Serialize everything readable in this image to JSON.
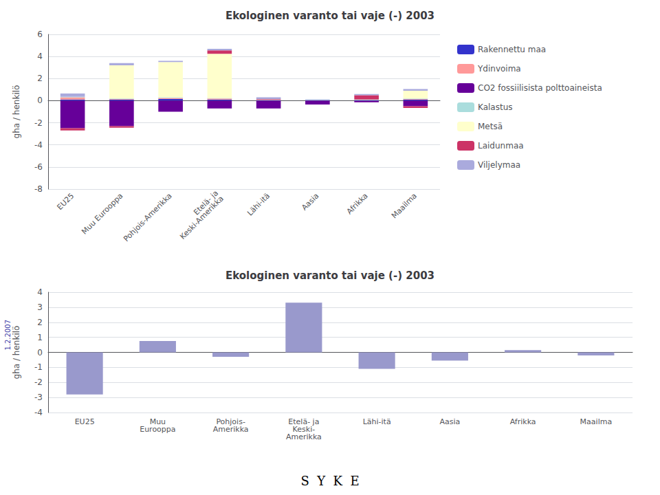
{
  "chart_data": [
    {
      "type": "bar",
      "stacked": true,
      "title": "Ekologinen varanto tai vaje (-) 2003",
      "ylabel": "gha / henkilö",
      "categories": [
        "EU25",
        "Muu Eurooppa",
        "Pohjois-Amerikka",
        "Etelä- ja\nKeski-Amerikka",
        "Lähi-itä",
        "Aasia",
        "Afrikka",
        "Maailma"
      ],
      "series": [
        {
          "name": "Rakennettu maa",
          "color": "#3333CC",
          "values": [
            0.1,
            0.1,
            0.15,
            0.1,
            0.05,
            0.05,
            0.05,
            0.1
          ]
        },
        {
          "name": "Ydinvoima",
          "color": "#FF9999",
          "values": [
            0.2,
            0.05,
            0.1,
            0.1,
            0.02,
            0.0,
            0.0,
            0.05
          ]
        },
        {
          "name": "CO2 fossiilisista polttoaineista",
          "color": "#660099",
          "values": [
            -2.5,
            -2.3,
            -1.0,
            -0.7,
            -0.7,
            -0.35,
            -0.15,
            -0.5
          ]
        },
        {
          "name": "Kalastus",
          "color": "#AADDDD",
          "values": [
            0.05,
            0.05,
            0.05,
            0.05,
            0.03,
            0.02,
            0.05,
            0.05
          ]
        },
        {
          "name": "Metsä",
          "color": "#FFFFCC",
          "values": [
            0.0,
            3.0,
            3.2,
            4.0,
            0.0,
            0.0,
            0.0,
            0.7
          ]
        },
        {
          "name": "Laidunmaa",
          "color": "#CC3366",
          "values": [
            -0.2,
            -0.15,
            0.0,
            0.3,
            0.05,
            0.0,
            0.4,
            -0.15
          ]
        },
        {
          "name": "Viljelymaa",
          "color": "#AAAADD",
          "values": [
            0.3,
            0.2,
            0.1,
            0.15,
            0.15,
            0.05,
            0.1,
            0.15
          ]
        }
      ],
      "ylim": [
        -8,
        6
      ],
      "yticks": [
        -8,
        -6,
        -4,
        -2,
        0,
        2,
        4,
        6
      ],
      "grid": true,
      "legend": "right"
    },
    {
      "type": "bar",
      "title": "Ekologinen varanto tai vaje (-) 2003",
      "ylabel": "gha / henkilö",
      "categories": [
        "EU25",
        "Muu\nEurooppa",
        "Pohjois-\nAmerikka",
        "Etelä- ja\nKeski-\nAmerikka",
        "Lähi-itä",
        "Aasia",
        "Afrikka",
        "Maailma"
      ],
      "values": [
        -2.8,
        0.75,
        -0.3,
        3.3,
        -1.1,
        -0.55,
        0.15,
        -0.2
      ],
      "color": "#9999CC",
      "ylim": [
        -4,
        4
      ],
      "yticks": [
        -4,
        -3,
        -2,
        -1,
        0,
        1,
        2,
        3,
        4
      ],
      "grid": true,
      "annotations": [
        "1.2.2007",
        "S  Y  K  E"
      ]
    }
  ]
}
